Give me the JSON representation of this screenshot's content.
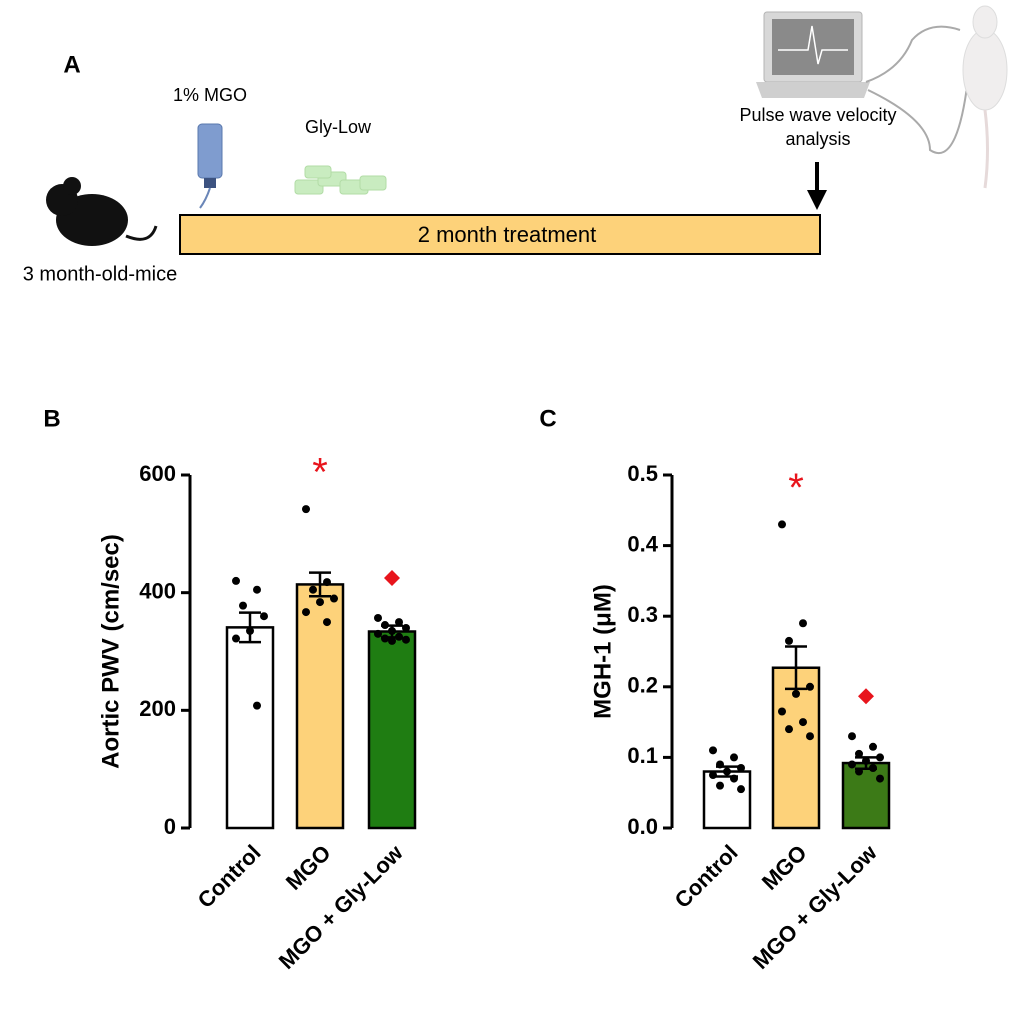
{
  "panel_a": {
    "label": "A",
    "drug": "1% MGO",
    "supplement": "Gly-Low",
    "timeline": "2 month treatment",
    "subjects": "3 month-old-mice",
    "readout": [
      "Pulse wave velocity",
      "analysis"
    ]
  },
  "chart_data": [
    {
      "type": "bar",
      "panel": "B",
      "y_label": "Aortic PWV (cm/sec)",
      "categories": [
        "Control",
        "MGO",
        "MGO + Gly-Low"
      ],
      "values": [
        341,
        414,
        334
      ],
      "errors": [
        25,
        20,
        10
      ],
      "points": [
        [
          420,
          405,
          378,
          360,
          335,
          322,
          208
        ],
        [
          542,
          418,
          405,
          390,
          384,
          367,
          350
        ],
        [
          357,
          350,
          345,
          340,
          335,
          330,
          325,
          322,
          320,
          318
        ]
      ],
      "colors": [
        "#ffffff",
        "#fdd27a",
        "#1f7d12"
      ],
      "ylim": [
        0,
        600
      ],
      "yticks": [
        0,
        200,
        400,
        600
      ],
      "annotations": [
        {
          "category": "MGO",
          "text": "*"
        },
        {
          "category": "MGO + Gly-Low",
          "marker": "diamond"
        }
      ]
    },
    {
      "type": "bar",
      "panel": "C",
      "y_label": "MGH-1 (μM)",
      "categories": [
        "Control",
        "MGO",
        "MGO + Gly-Low"
      ],
      "values": [
        0.08,
        0.227,
        0.092
      ],
      "errors": [
        0.007,
        0.03,
        0.008
      ],
      "points": [
        [
          0.11,
          0.1,
          0.09,
          0.085,
          0.08,
          0.075,
          0.07,
          0.06,
          0.055
        ],
        [
          0.43,
          0.29,
          0.265,
          0.2,
          0.19,
          0.165,
          0.15,
          0.14,
          0.13
        ],
        [
          0.13,
          0.115,
          0.105,
          0.1,
          0.095,
          0.09,
          0.085,
          0.08,
          0.07
        ]
      ],
      "colors": [
        "#ffffff",
        "#fdd27a",
        "#3c7a17"
      ],
      "ylim": [
        0,
        0.5
      ],
      "yticks": [
        {
          "value": 0,
          "label": "0.0"
        },
        0.1,
        0.2,
        0.3,
        0.4,
        0.5
      ],
      "annotations": [
        {
          "category": "MGO",
          "text": "*"
        },
        {
          "category": "MGO + Gly-Low",
          "marker": "diamond"
        }
      ]
    }
  ]
}
